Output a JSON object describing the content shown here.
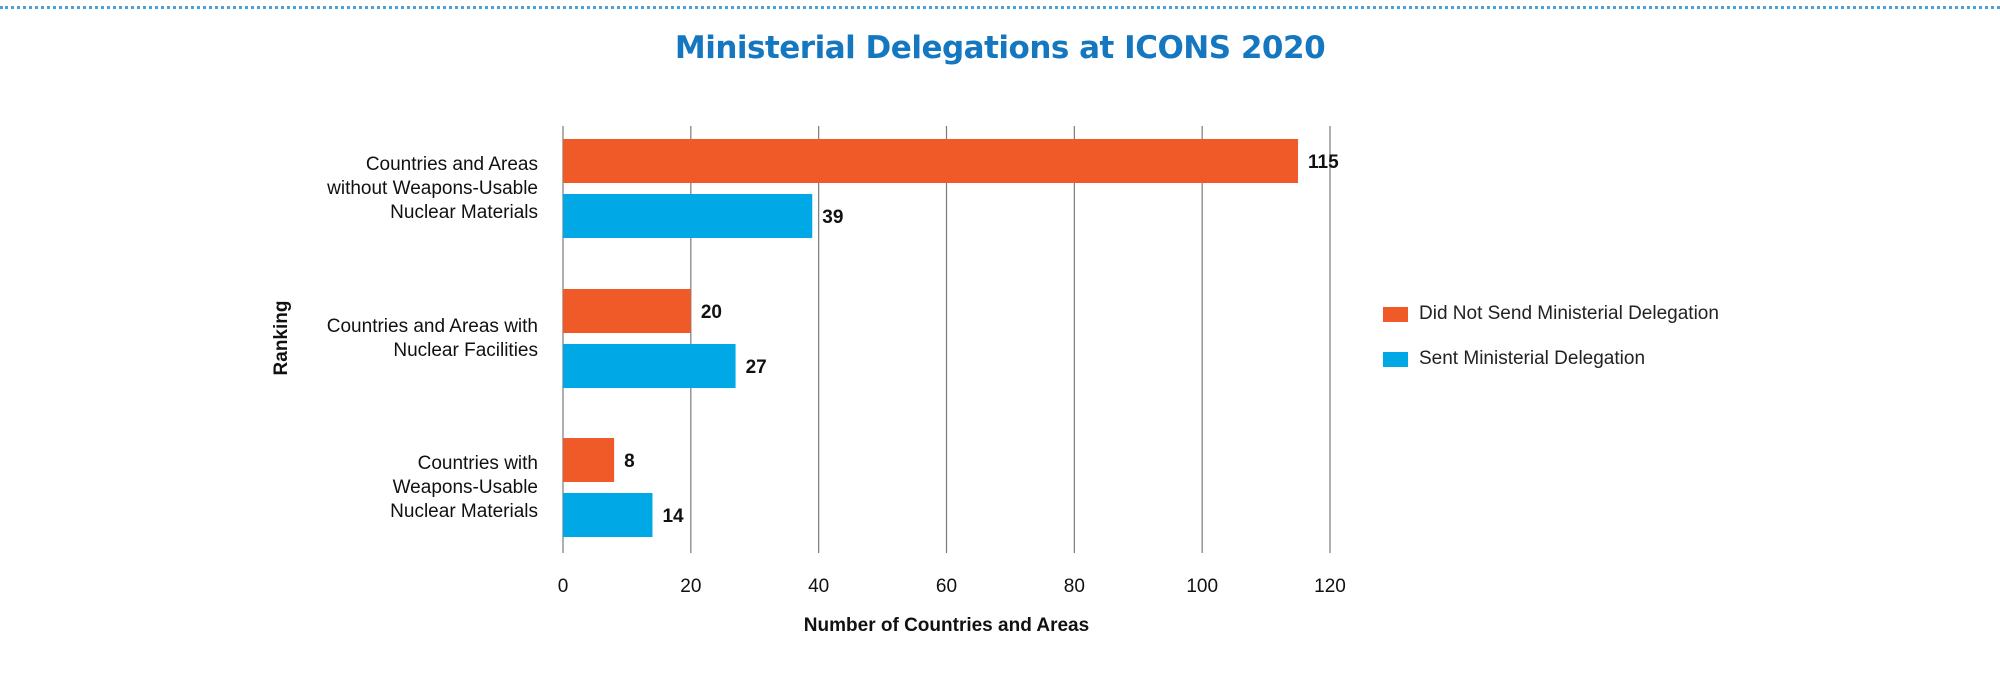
{
  "chart_data": {
    "type": "bar",
    "orientation": "horizontal",
    "title": "Ministerial Delegations at ICONS 2020",
    "xlabel": "Number of Countries and Areas",
    "ylabel": "Ranking",
    "xlim": [
      0,
      120
    ],
    "x_ticks": [
      0,
      20,
      40,
      60,
      80,
      100,
      120
    ],
    "grid": "vertical",
    "legend_position": "right",
    "categories": [
      "Countries and Areas without Weapons-Usable Nuclear Materials",
      "Countries and Areas with Nuclear Facilities",
      "Countries with Weapons-Usable Nuclear Materials"
    ],
    "category_lines": [
      [
        "Countries and Areas",
        "without Weapons-Usable",
        "Nuclear Materials"
      ],
      [
        "Countries and Areas with",
        "Nuclear Facilities"
      ],
      [
        "Countries with",
        "Weapons-Usable",
        "Nuclear Materials"
      ]
    ],
    "series": [
      {
        "name": "Did Not Send Ministerial Delegation",
        "color": "#f05a28",
        "values": [
          115,
          20,
          8
        ]
      },
      {
        "name": "Sent Ministerial Delegation",
        "color": "#00a9e6",
        "values": [
          39,
          27,
          14
        ]
      }
    ]
  }
}
